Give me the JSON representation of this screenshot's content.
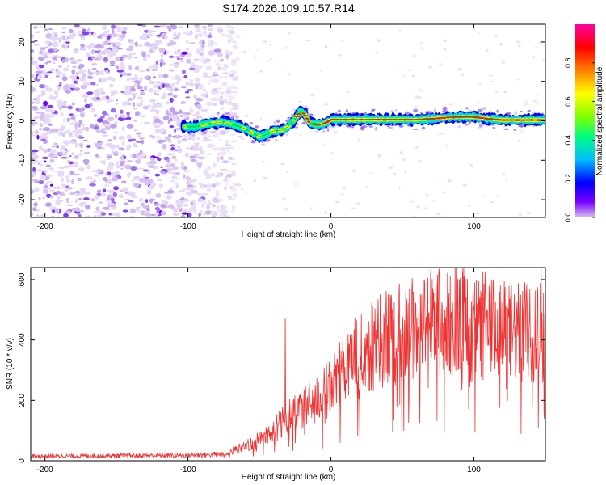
{
  "title": "S174.2026.109.10.57.R14",
  "chart_data": [
    {
      "type": "heatmap",
      "name": "spectrogram",
      "xlabel": "Height of straight line (km)",
      "ylabel": "Frequency (Hz)",
      "xlim": [
        -210,
        150
      ],
      "ylim": [
        -24.5,
        24.5
      ],
      "xticks": [
        -200,
        -100,
        0,
        100
      ],
      "yticks": [
        -20,
        -10,
        0,
        10,
        20
      ],
      "noise_region_x": [
        -210,
        -75
      ],
      "signal_start_x": -103,
      "ridge": {
        "x": [
          -103,
          -95,
          -85,
          -75,
          -68,
          -60,
          -55,
          -50,
          -45,
          -40,
          -35,
          -30,
          -25,
          -21,
          -18,
          -15,
          -10,
          -5,
          0,
          10,
          20,
          40,
          60,
          70,
          80,
          90,
          100,
          110,
          120,
          130,
          150
        ],
        "freq": [
          -1.5,
          -1.5,
          -0.7,
          -0.3,
          -1.0,
          -2.0,
          -3.0,
          -4.0,
          -3.5,
          -2.5,
          -2.5,
          -1.5,
          0.5,
          2.5,
          1.5,
          -0.5,
          -1.0,
          -0.8,
          0.3,
          0.3,
          0.3,
          0.3,
          0.3,
          0.5,
          0.8,
          1.0,
          1.0,
          0.5,
          0.2,
          0.2,
          0.2
        ]
      }
    },
    {
      "type": "colorbar",
      "name": "amplitude-colorbar",
      "label": "Normalized spectral amplitude",
      "range": [
        0,
        1
      ],
      "ticks": [
        "0.0",
        "0.2",
        "0.4",
        "0.6",
        "0.8"
      ],
      "colors": [
        "#d8c0f0",
        "#7a00ff",
        "#0000ff",
        "#00bfff",
        "#00ff7f",
        "#80ff00",
        "#ffff00",
        "#ff8000",
        "#ff0000",
        "#ff00a0"
      ]
    },
    {
      "type": "line",
      "name": "snr",
      "xlabel": "Height of straight line (km)",
      "ylabel": "SNR (10 * v/v)",
      "xlim": [
        -210,
        150
      ],
      "ylim": [
        0,
        640
      ],
      "xticks": [
        -200,
        -100,
        0,
        100
      ],
      "yticks": [
        0,
        200,
        400,
        600
      ],
      "color": "#ee3333",
      "envelope": {
        "x": [
          -210,
          -100,
          -75,
          -65,
          -50,
          -40,
          -30,
          -20,
          -10,
          0,
          10,
          20,
          30,
          40,
          50,
          60,
          70,
          80,
          90,
          100,
          110,
          120,
          130,
          140,
          150
        ],
        "value": [
          15,
          18,
          22,
          40,
          75,
          110,
          150,
          185,
          220,
          265,
          320,
          370,
          410,
          440,
          465,
          480,
          490,
          490,
          480,
          470,
          465,
          460,
          455,
          460,
          470
        ]
      },
      "spikes": [
        {
          "x": -32,
          "value": 470
        },
        {
          "x": 70,
          "value": 640
        },
        {
          "x": 92,
          "value": 625
        },
        {
          "x": 147,
          "value": 640
        }
      ]
    }
  ]
}
